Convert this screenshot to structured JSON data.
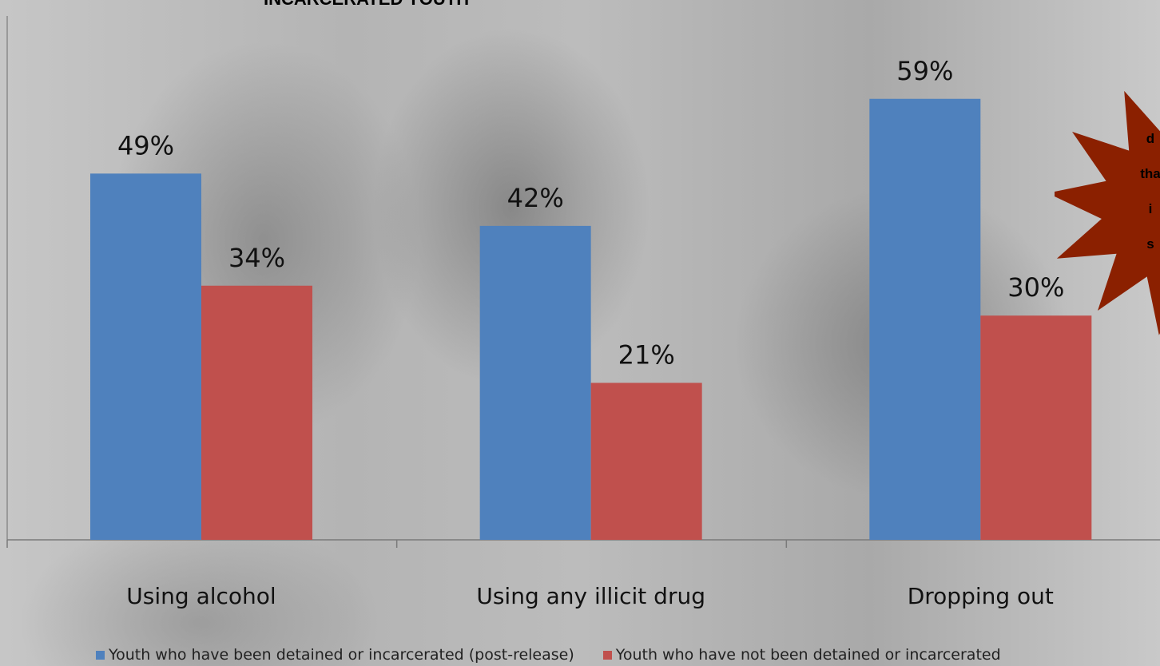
{
  "chart_data": {
    "type": "bar",
    "title": "INCARCERATED YOUTH",
    "categories": [
      "Using alcohol",
      "Using any illicit drug",
      "Dropping out"
    ],
    "series": [
      {
        "name": "Youth who have been detained or incarcerated (post-release)",
        "values": [
          49,
          42,
          59
        ],
        "labels": [
          "49%",
          "42%",
          "59%"
        ],
        "color": "#4f81bd"
      },
      {
        "name": "Youth who have not been detained or incarcerated",
        "values": [
          34,
          21,
          30
        ],
        "labels": [
          "34%",
          "21%",
          "30%"
        ],
        "color": "#c0504d"
      }
    ],
    "ylim": [
      0,
      70
    ],
    "grid": false,
    "legend_position": "bottom"
  },
  "callout": {
    "shape": "starburst",
    "color": "#8b2000",
    "text_fragments": [
      "d",
      "tha",
      "i",
      "s"
    ]
  }
}
